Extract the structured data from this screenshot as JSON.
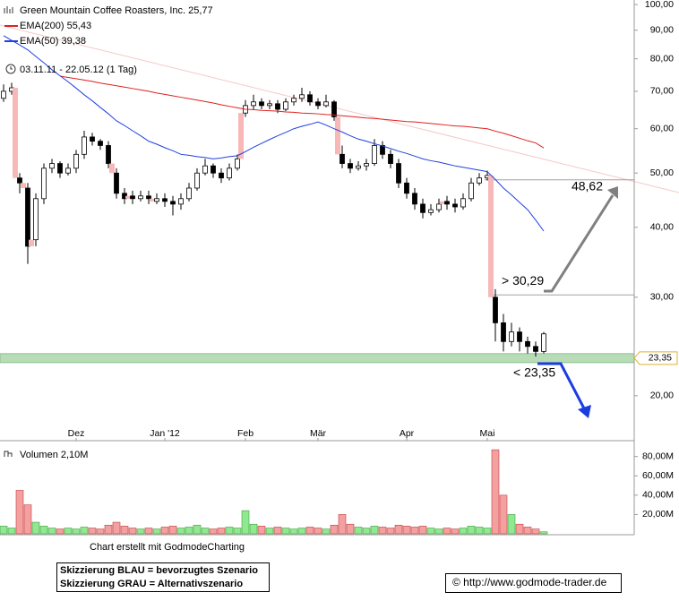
{
  "chart_data": {
    "type": "candlestick",
    "title": "Green Mountain Coffee Roasters, Inc. 25,77",
    "date_range": "03.11.11 - 22.05.12 (1 Tag)",
    "log_scale": true,
    "ylim": [
      17.7,
      101.9
    ],
    "yticks": [
      {
        "value": 100,
        "label": "100,00"
      },
      {
        "value": 90,
        "label": "90,00"
      },
      {
        "value": 80,
        "label": "80,00"
      },
      {
        "value": 70,
        "label": "70,00"
      },
      {
        "value": 60,
        "label": "60,00"
      },
      {
        "value": 50,
        "label": "50,00"
      },
      {
        "value": 40,
        "label": "40,00"
      },
      {
        "value": 30,
        "label": "30,00"
      },
      {
        "value": 20,
        "label": "20,00"
      }
    ],
    "categories": [
      null,
      null,
      null,
      null,
      null,
      null,
      null,
      null,
      null,
      "Dez",
      null,
      null,
      null,
      null,
      null,
      null,
      null,
      null,
      null,
      null,
      "Jan '12",
      null,
      null,
      null,
      null,
      null,
      null,
      null,
      null,
      null,
      "Feb",
      null,
      null,
      null,
      null,
      null,
      null,
      null,
      null,
      "Mär",
      null,
      null,
      null,
      null,
      null,
      null,
      null,
      null,
      null,
      null,
      "Apr",
      null,
      null,
      null,
      null,
      null,
      null,
      null,
      null,
      null,
      "Mai",
      null,
      null,
      null,
      null,
      null,
      null,
      null
    ],
    "open": [
      68,
      70,
      49,
      47,
      38,
      45,
      51,
      52,
      50,
      51,
      54,
      58,
      57,
      56,
      50,
      46,
      45.5,
      45,
      45.5,
      44.5,
      45,
      44.5,
      44,
      45,
      47,
      50,
      51.5,
      50,
      49,
      51,
      64,
      66,
      67,
      66,
      66.5,
      65,
      67,
      68,
      69,
      67,
      66,
      67,
      54,
      52,
      51,
      51.5,
      52,
      56,
      54,
      52,
      48,
      46,
      44,
      42.5,
      43,
      44.5,
      44,
      43.5,
      45,
      48,
      49,
      30,
      27,
      25,
      26,
      25,
      24.5,
      24
    ],
    "high": [
      72,
      72.5,
      50,
      48,
      46,
      52,
      53,
      52.5,
      52,
      55,
      59.5,
      59,
      57.5,
      57,
      51,
      47,
      46.5,
      46.5,
      46.5,
      46,
      46,
      45.5,
      46,
      48,
      51,
      53,
      52,
      51,
      52,
      54,
      67.5,
      69,
      68,
      67.5,
      67.5,
      68,
      69,
      71,
      70,
      68,
      69,
      67.5,
      56,
      53,
      52.5,
      53,
      57.5,
      57,
      55,
      53,
      49,
      47,
      45,
      44,
      45,
      45.5,
      45,
      46,
      49,
      50,
      50.5,
      31,
      28,
      27,
      26.5,
      25.5,
      25,
      26
    ],
    "low": [
      67,
      69,
      46,
      34.4,
      37,
      44,
      50,
      49,
      49.5,
      50,
      53,
      56,
      55,
      51,
      45,
      44,
      44,
      44.5,
      44,
      44,
      43.5,
      42,
      43,
      44.5,
      46.5,
      49.5,
      49,
      48,
      48.5,
      50.5,
      63,
      65,
      65,
      65,
      64,
      64.5,
      66,
      67,
      66,
      65,
      65.5,
      62,
      51,
      50,
      50.5,
      50.5,
      51.5,
      53,
      51,
      47,
      45,
      43,
      41.5,
      42,
      42.5,
      43,
      42.5,
      43,
      44.5,
      47.5,
      48.5,
      25,
      24,
      24.5,
      24,
      23.8,
      23.5,
      23.8
    ],
    "close": [
      70,
      71,
      48,
      37,
      45,
      51,
      52,
      50,
      51,
      54,
      58,
      57,
      56,
      52,
      46,
      45,
      45,
      45.5,
      45,
      45,
      44.5,
      44,
      45,
      47,
      50,
      51.5,
      50,
      49,
      51,
      53,
      66,
      67,
      66,
      66.5,
      65,
      67,
      68,
      69,
      67,
      66,
      67,
      63,
      52,
      51,
      51.5,
      52,
      56,
      54,
      52,
      48,
      46,
      44,
      42.5,
      43,
      44,
      44,
      43.5,
      45,
      48,
      49,
      49.5,
      27,
      25,
      26,
      25,
      24.5,
      24,
      25.8
    ],
    "series": [
      {
        "name": "EMA(200) 55,43",
        "color": "#e02020",
        "values": [
          null,
          null,
          null,
          null,
          null,
          null,
          null,
          74.5,
          74.1,
          73.7,
          73.3,
          72.9,
          72.4,
          72.0,
          71.6,
          71.2,
          70.8,
          70.4,
          70.0,
          69.5,
          69.1,
          68.7,
          68.3,
          67.9,
          67.5,
          67.1,
          66.7,
          66.2,
          65.8,
          65.4,
          65.0,
          64.9,
          64.7,
          64.6,
          64.5,
          64.3,
          64.2,
          64.0,
          63.9,
          63.8,
          63.6,
          63.5,
          63.3,
          63.1,
          62.9,
          62.7,
          62.6,
          62.4,
          62.2,
          62.0,
          61.8,
          61.7,
          61.5,
          61.3,
          61.1,
          60.9,
          60.7,
          60.6,
          60.4,
          60.2,
          60.0,
          59.4,
          58.9,
          58.3,
          57.7,
          57.1,
          56.6,
          55.43
        ]
      },
      {
        "name": "EMA(50) 39,38",
        "color": "#2040e0",
        "values": [
          88,
          86.3,
          84.7,
          83,
          80.8,
          78.7,
          76.5,
          74.6,
          72.8,
          70.9,
          69,
          67.3,
          65.5,
          63.8,
          62,
          60.8,
          59.5,
          58.3,
          57,
          56.3,
          55.5,
          54.8,
          54,
          53.8,
          53.5,
          53.3,
          53,
          53.2,
          53.5,
          53.7,
          54.6,
          55.6,
          56.5,
          57.4,
          58.3,
          59.1,
          60,
          60.6,
          61.1,
          61.7,
          60.9,
          60,
          59.2,
          58.3,
          57.5,
          57,
          56.4,
          55.9,
          55.3,
          54.7,
          54.2,
          53.6,
          53,
          52.6,
          52.3,
          51.9,
          51.5,
          51.2,
          50.9,
          50.6,
          50.3,
          48.7,
          47,
          45.7,
          44.3,
          43,
          41.2,
          39.38
        ]
      }
    ],
    "up_color": "#ffffff",
    "down_color": "#000000",
    "gap_color": "#f8b8b8",
    "levels": [
      {
        "value": 48.62,
        "label": "48,62",
        "color": "#808080"
      },
      {
        "value": 30.29,
        "label": "> 30,29",
        "color": "#808080"
      },
      {
        "value": 23.35,
        "label": "< 23,35",
        "color": "#2040e0"
      }
    ],
    "price_marker": {
      "value": 23.35,
      "label": "23,35"
    },
    "volume": {
      "label": "Volumen 2,10M",
      "ylim": [
        0,
        89000000
      ],
      "yticks": [
        {
          "value": 20000000,
          "label": "20,00M"
        },
        {
          "value": 40000000,
          "label": "40,00M"
        },
        {
          "value": 60000000,
          "label": "60,00M"
        },
        {
          "value": 80000000,
          "label": "80,00M"
        }
      ],
      "up_color": "#90e890",
      "down_color": "#f4a0a0",
      "values": [
        8000000,
        6000000,
        45000000,
        30000000,
        12000000,
        8000000,
        6000000,
        5000000,
        6000000,
        5000000,
        7000000,
        6000000,
        5000000,
        9000000,
        12000000,
        8000000,
        6000000,
        5000000,
        6000000,
        5000000,
        7000000,
        8000000,
        6000000,
        7000000,
        9000000,
        6000000,
        5000000,
        6000000,
        7000000,
        6000000,
        24000000,
        10000000,
        8000000,
        6000000,
        7000000,
        6000000,
        5000000,
        6000000,
        7000000,
        6000000,
        5000000,
        9000000,
        20000000,
        10000000,
        7000000,
        6000000,
        8000000,
        7000000,
        6000000,
        9000000,
        8000000,
        7000000,
        8000000,
        6000000,
        5000000,
        6000000,
        5000000,
        6000000,
        8000000,
        7000000,
        6000000,
        87000000,
        40000000,
        20000000,
        10000000,
        7000000,
        5000000,
        2100000
      ]
    },
    "credit": "Chart erstellt mit GodmodeCharting",
    "notes": [
      "Skizzierung BLAU = bevorzugtes Szenario",
      "Skizzierung GRAU = Alternativszenario"
    ],
    "source": "© http://www.godmode-trader.de"
  }
}
